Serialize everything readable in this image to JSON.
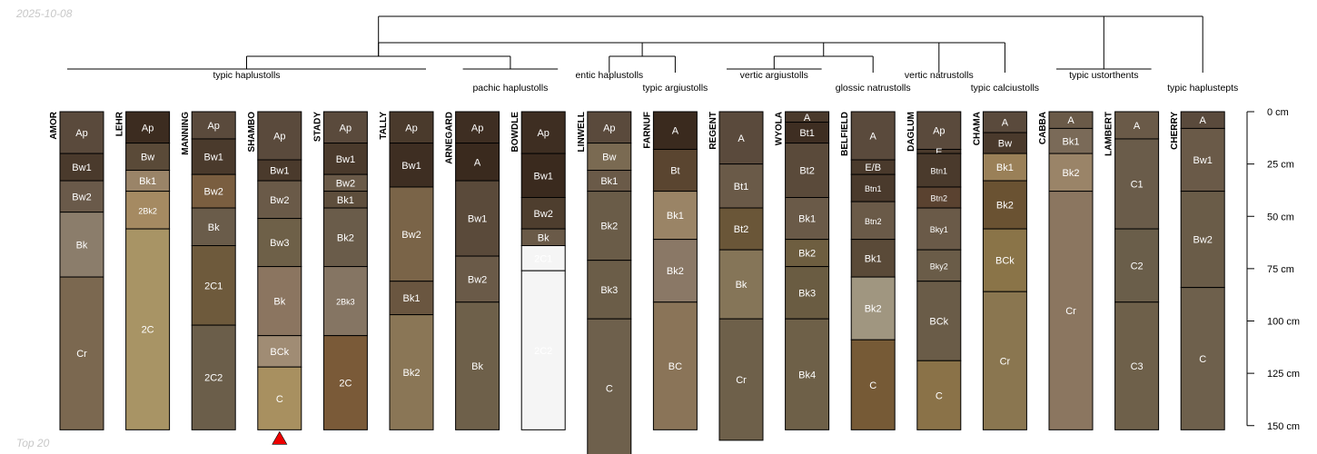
{
  "header": {
    "date": "2025-10-08"
  },
  "footer": {
    "caption": "Top 20"
  },
  "axis": {
    "unit": "cm",
    "ticks": [
      0,
      25,
      50,
      75,
      100,
      125,
      150
    ]
  },
  "marker": {
    "profile": "SHAMBO",
    "color": "#ee0000"
  },
  "dendrogram": {
    "groups": [
      {
        "label": "typic haplustolls",
        "members": [
          "AMOR",
          "LEHR",
          "MANNING",
          "SHAMBO",
          "STADY",
          "TALLY"
        ]
      },
      {
        "label": "pachic haplustolls",
        "members": [
          "ARNEGARD",
          "BOWDLE"
        ]
      },
      {
        "label": "entic haplustolls",
        "members": [
          "LINWELL"
        ]
      },
      {
        "label": "typic argiustolls",
        "members": [
          "FARNUF"
        ]
      },
      {
        "label": "vertic argiustolls",
        "members": [
          "REGENT",
          "WYOLA"
        ]
      },
      {
        "label": "glossic natrustolls",
        "members": [
          "BELFIELD"
        ]
      },
      {
        "label": "vertic natrustolls",
        "members": [
          "DAGLUM"
        ]
      },
      {
        "label": "typic calciustolls",
        "members": [
          "CHAMA"
        ]
      },
      {
        "label": "typic ustorthents",
        "members": [
          "CABBA",
          "LAMBERT"
        ]
      },
      {
        "label": "typic haplustepts",
        "members": [
          "CHERRY"
        ]
      }
    ]
  },
  "profiles": [
    {
      "name": "AMOR",
      "horizons": [
        {
          "name": "Ap",
          "top": 0,
          "bottom": 20,
          "color": "#5a4a3c"
        },
        {
          "name": "Bw1",
          "top": 20,
          "bottom": 33,
          "color": "#4a3a2c"
        },
        {
          "name": "Bw2",
          "top": 33,
          "bottom": 48,
          "color": "#6a5a4a"
        },
        {
          "name": "Bk",
          "top": 48,
          "bottom": 79,
          "color": "#8b7d6b"
        },
        {
          "name": "Cr",
          "top": 79,
          "bottom": 152,
          "color": "#7b6850"
        }
      ]
    },
    {
      "name": "LEHR",
      "horizons": [
        {
          "name": "Ap",
          "top": 0,
          "bottom": 15,
          "color": "#3c2c20"
        },
        {
          "name": "Bw",
          "top": 15,
          "bottom": 28,
          "color": "#5a4a38"
        },
        {
          "name": "Bk1",
          "top": 28,
          "bottom": 38,
          "color": "#9a8468"
        },
        {
          "name": "2Bk2",
          "top": 38,
          "bottom": 56,
          "color": "#a58a62"
        },
        {
          "name": "2C",
          "top": 56,
          "bottom": 152,
          "color": "#a89465"
        }
      ]
    },
    {
      "name": "MANNING",
      "horizons": [
        {
          "name": "Ap",
          "top": 0,
          "bottom": 13,
          "color": "#5a4a3c"
        },
        {
          "name": "Bw1",
          "top": 13,
          "bottom": 30,
          "color": "#4a3a2c"
        },
        {
          "name": "Bw2",
          "top": 30,
          "bottom": 46,
          "color": "#7a5e40"
        },
        {
          "name": "Bk",
          "top": 46,
          "bottom": 64,
          "color": "#6a5c4a"
        },
        {
          "name": "2C1",
          "top": 64,
          "bottom": 102,
          "color": "#6e5a3c"
        },
        {
          "name": "2C2",
          "top": 102,
          "bottom": 152,
          "color": "#6b5e4a"
        }
      ]
    },
    {
      "name": "SHAMBO",
      "horizons": [
        {
          "name": "Ap",
          "top": 0,
          "bottom": 23,
          "color": "#5a4a3c"
        },
        {
          "name": "Bw1",
          "top": 23,
          "bottom": 33,
          "color": "#4a3a2c"
        },
        {
          "name": "Bw2",
          "top": 33,
          "bottom": 51,
          "color": "#6a5a48"
        },
        {
          "name": "Bw3",
          "top": 51,
          "bottom": 74,
          "color": "#6e6048"
        },
        {
          "name": "Bk",
          "top": 74,
          "bottom": 107,
          "color": "#8b7560"
        },
        {
          "name": "BCk",
          "top": 107,
          "bottom": 122,
          "color": "#a08c74"
        },
        {
          "name": "C",
          "top": 122,
          "bottom": 152,
          "color": "#a89060"
        }
      ]
    },
    {
      "name": "STADY",
      "horizons": [
        {
          "name": "Ap",
          "top": 0,
          "bottom": 15,
          "color": "#5a4a3c"
        },
        {
          "name": "Bw1",
          "top": 15,
          "bottom": 30,
          "color": "#4a3a2c"
        },
        {
          "name": "Bw2",
          "top": 30,
          "bottom": 38,
          "color": "#6a5a48"
        },
        {
          "name": "Bk1",
          "top": 38,
          "bottom": 46,
          "color": "#5e4e3c"
        },
        {
          "name": "Bk2",
          "top": 46,
          "bottom": 74,
          "color": "#6a5c4a"
        },
        {
          "name": "2Bk3",
          "top": 74,
          "bottom": 107,
          "color": "#857563"
        },
        {
          "name": "2C",
          "top": 107,
          "bottom": 152,
          "color": "#7a5a38"
        }
      ]
    },
    {
      "name": "TALLY",
      "horizons": [
        {
          "name": "Ap",
          "top": 0,
          "bottom": 15,
          "color": "#4a3a2c"
        },
        {
          "name": "Bw1",
          "top": 15,
          "bottom": 36,
          "color": "#3e2e22"
        },
        {
          "name": "Bw2",
          "top": 36,
          "bottom": 81,
          "color": "#7a6448"
        },
        {
          "name": "Bk1",
          "top": 81,
          "bottom": 97,
          "color": "#6a5640"
        },
        {
          "name": "Bk2",
          "top": 97,
          "bottom": 152,
          "color": "#8a7656"
        }
      ]
    },
    {
      "name": "ARNEGARD",
      "horizons": [
        {
          "name": "Ap",
          "top": 0,
          "bottom": 15,
          "color": "#3e2e22"
        },
        {
          "name": "A",
          "top": 15,
          "bottom": 33,
          "color": "#3a2a1e"
        },
        {
          "name": "Bw1",
          "top": 33,
          "bottom": 69,
          "color": "#5a4a3a"
        },
        {
          "name": "Bw2",
          "top": 69,
          "bottom": 91,
          "color": "#6a5a48"
        },
        {
          "name": "Bk",
          "top": 91,
          "bottom": 152,
          "color": "#6e604a"
        }
      ]
    },
    {
      "name": "BOWDLE",
      "horizons": [
        {
          "name": "Ap",
          "top": 0,
          "bottom": 20,
          "color": "#3e2e22"
        },
        {
          "name": "Bw1",
          "top": 20,
          "bottom": 41,
          "color": "#3a2a1e"
        },
        {
          "name": "Bw2",
          "top": 41,
          "bottom": 56,
          "color": "#4e3e2e"
        },
        {
          "name": "Bk",
          "top": 56,
          "bottom": 64,
          "color": "#6a5a48"
        },
        {
          "name": "2C1",
          "top": 64,
          "bottom": 76,
          "color": "#f5f5f5"
        },
        {
          "name": "2C2",
          "top": 76,
          "bottom": 152,
          "color": "#f5f5f5"
        }
      ]
    },
    {
      "name": "LINWELL",
      "horizons": [
        {
          "name": "Ap",
          "top": 0,
          "bottom": 15,
          "color": "#5a4a3c"
        },
        {
          "name": "Bw",
          "top": 15,
          "bottom": 28,
          "color": "#7a6a52"
        },
        {
          "name": "Bk1",
          "top": 28,
          "bottom": 38,
          "color": "#6a5a48"
        },
        {
          "name": "Bk2",
          "top": 38,
          "bottom": 71,
          "color": "#6a5c48"
        },
        {
          "name": "Bk3",
          "top": 71,
          "bottom": 99,
          "color": "#6b5d48"
        },
        {
          "name": "C",
          "top": 99,
          "bottom": 165,
          "color": "#6e604c"
        }
      ]
    },
    {
      "name": "FARNUF",
      "horizons": [
        {
          "name": "A",
          "top": 0,
          "bottom": 18,
          "color": "#3a2a1e"
        },
        {
          "name": "Bt",
          "top": 18,
          "bottom": 38,
          "color": "#5a4530"
        },
        {
          "name": "Bk1",
          "top": 38,
          "bottom": 61,
          "color": "#9a8466"
        },
        {
          "name": "Bk2",
          "top": 61,
          "bottom": 91,
          "color": "#8a7866"
        },
        {
          "name": "BC",
          "top": 91,
          "bottom": 152,
          "color": "#8a7458"
        }
      ]
    },
    {
      "name": "REGENT",
      "horizons": [
        {
          "name": "A",
          "top": 0,
          "bottom": 25,
          "color": "#5a4a3c"
        },
        {
          "name": "Bt1",
          "top": 25,
          "bottom": 46,
          "color": "#6a5a48"
        },
        {
          "name": "Bt2",
          "top": 46,
          "bottom": 66,
          "color": "#6a5638"
        },
        {
          "name": "Bk",
          "top": 66,
          "bottom": 99,
          "color": "#857558"
        },
        {
          "name": "Cr",
          "top": 99,
          "bottom": 157,
          "color": "#6e604a"
        }
      ]
    },
    {
      "name": "WYOLA",
      "horizons": [
        {
          "name": "A",
          "top": 0,
          "bottom": 5,
          "color": "#4a3a2c"
        },
        {
          "name": "Bt1",
          "top": 5,
          "bottom": 15,
          "color": "#3e2e22"
        },
        {
          "name": "Bt2",
          "top": 15,
          "bottom": 41,
          "color": "#5a4a3a"
        },
        {
          "name": "Bk1",
          "top": 41,
          "bottom": 61,
          "color": "#6a5a48"
        },
        {
          "name": "Bk2",
          "top": 61,
          "bottom": 74,
          "color": "#6e5e40"
        },
        {
          "name": "Bk3",
          "top": 74,
          "bottom": 99,
          "color": "#6a5c42"
        },
        {
          "name": "Bk4",
          "top": 99,
          "bottom": 152,
          "color": "#6e6048"
        }
      ]
    },
    {
      "name": "BELFIELD",
      "horizons": [
        {
          "name": "A",
          "top": 0,
          "bottom": 23,
          "color": "#5a4a3c"
        },
        {
          "name": "E/B",
          "top": 23,
          "bottom": 30,
          "color": "#4a3a2c"
        },
        {
          "name": "Btn1",
          "top": 30,
          "bottom": 43,
          "color": "#4a3a2c"
        },
        {
          "name": "Btn2",
          "top": 43,
          "bottom": 61,
          "color": "#6a5a48"
        },
        {
          "name": "Bk1",
          "top": 61,
          "bottom": 79,
          "color": "#5a4a38"
        },
        {
          "name": "Bk2",
          "top": 79,
          "bottom": 109,
          "color": "#a09680"
        },
        {
          "name": "C",
          "top": 109,
          "bottom": 152,
          "color": "#765a36"
        }
      ]
    },
    {
      "name": "DAGLUM",
      "horizons": [
        {
          "name": "Ap",
          "top": 0,
          "bottom": 18,
          "color": "#5a4a3c"
        },
        {
          "name": "E",
          "top": 18,
          "bottom": 20,
          "color": "#4a3a2c"
        },
        {
          "name": "Btn1",
          "top": 20,
          "bottom": 36,
          "color": "#4a3a2c"
        },
        {
          "name": "Btn2",
          "top": 36,
          "bottom": 46,
          "color": "#5a4230"
        },
        {
          "name": "Bky1",
          "top": 46,
          "bottom": 66,
          "color": "#6a5a48"
        },
        {
          "name": "Bky2",
          "top": 66,
          "bottom": 81,
          "color": "#6a5c48"
        },
        {
          "name": "BCk",
          "top": 81,
          "bottom": 119,
          "color": "#6a5c48"
        },
        {
          "name": "C",
          "top": 119,
          "bottom": 152,
          "color": "#8a7248"
        }
      ]
    },
    {
      "name": "CHAMA",
      "horizons": [
        {
          "name": "A",
          "top": 0,
          "bottom": 10,
          "color": "#5a4a3c"
        },
        {
          "name": "Bw",
          "top": 10,
          "bottom": 20,
          "color": "#4a3a2c"
        },
        {
          "name": "Bk1",
          "top": 20,
          "bottom": 33,
          "color": "#9a8058"
        },
        {
          "name": "Bk2",
          "top": 33,
          "bottom": 56,
          "color": "#6a5232"
        },
        {
          "name": "BCk",
          "top": 56,
          "bottom": 86,
          "color": "#8a7448"
        },
        {
          "name": "Cr",
          "top": 86,
          "bottom": 152,
          "color": "#8a7650"
        }
      ]
    },
    {
      "name": "CABBA",
      "horizons": [
        {
          "name": "A",
          "top": 0,
          "bottom": 8,
          "color": "#6a5a48"
        },
        {
          "name": "Bk1",
          "top": 8,
          "bottom": 20,
          "color": "#7a6a58"
        },
        {
          "name": "Bk2",
          "top": 20,
          "bottom": 38,
          "color": "#9a8468"
        },
        {
          "name": "Cr",
          "top": 38,
          "bottom": 152,
          "color": "#8b7660"
        }
      ]
    },
    {
      "name": "LAMBERT",
      "horizons": [
        {
          "name": "A",
          "top": 0,
          "bottom": 13,
          "color": "#6a5a48"
        },
        {
          "name": "C1",
          "top": 13,
          "bottom": 56,
          "color": "#6a5c4a"
        },
        {
          "name": "C2",
          "top": 56,
          "bottom": 91,
          "color": "#6a5e4a"
        },
        {
          "name": "C3",
          "top": 91,
          "bottom": 152,
          "color": "#6e604a"
        }
      ]
    },
    {
      "name": "CHERRY",
      "horizons": [
        {
          "name": "A",
          "top": 0,
          "bottom": 8,
          "color": "#5a4a3c"
        },
        {
          "name": "Bw1",
          "top": 8,
          "bottom": 38,
          "color": "#6a5a48"
        },
        {
          "name": "Bw2",
          "top": 38,
          "bottom": 84,
          "color": "#6a5c48"
        },
        {
          "name": "C",
          "top": 84,
          "bottom": 152,
          "color": "#6e604c"
        }
      ]
    }
  ]
}
